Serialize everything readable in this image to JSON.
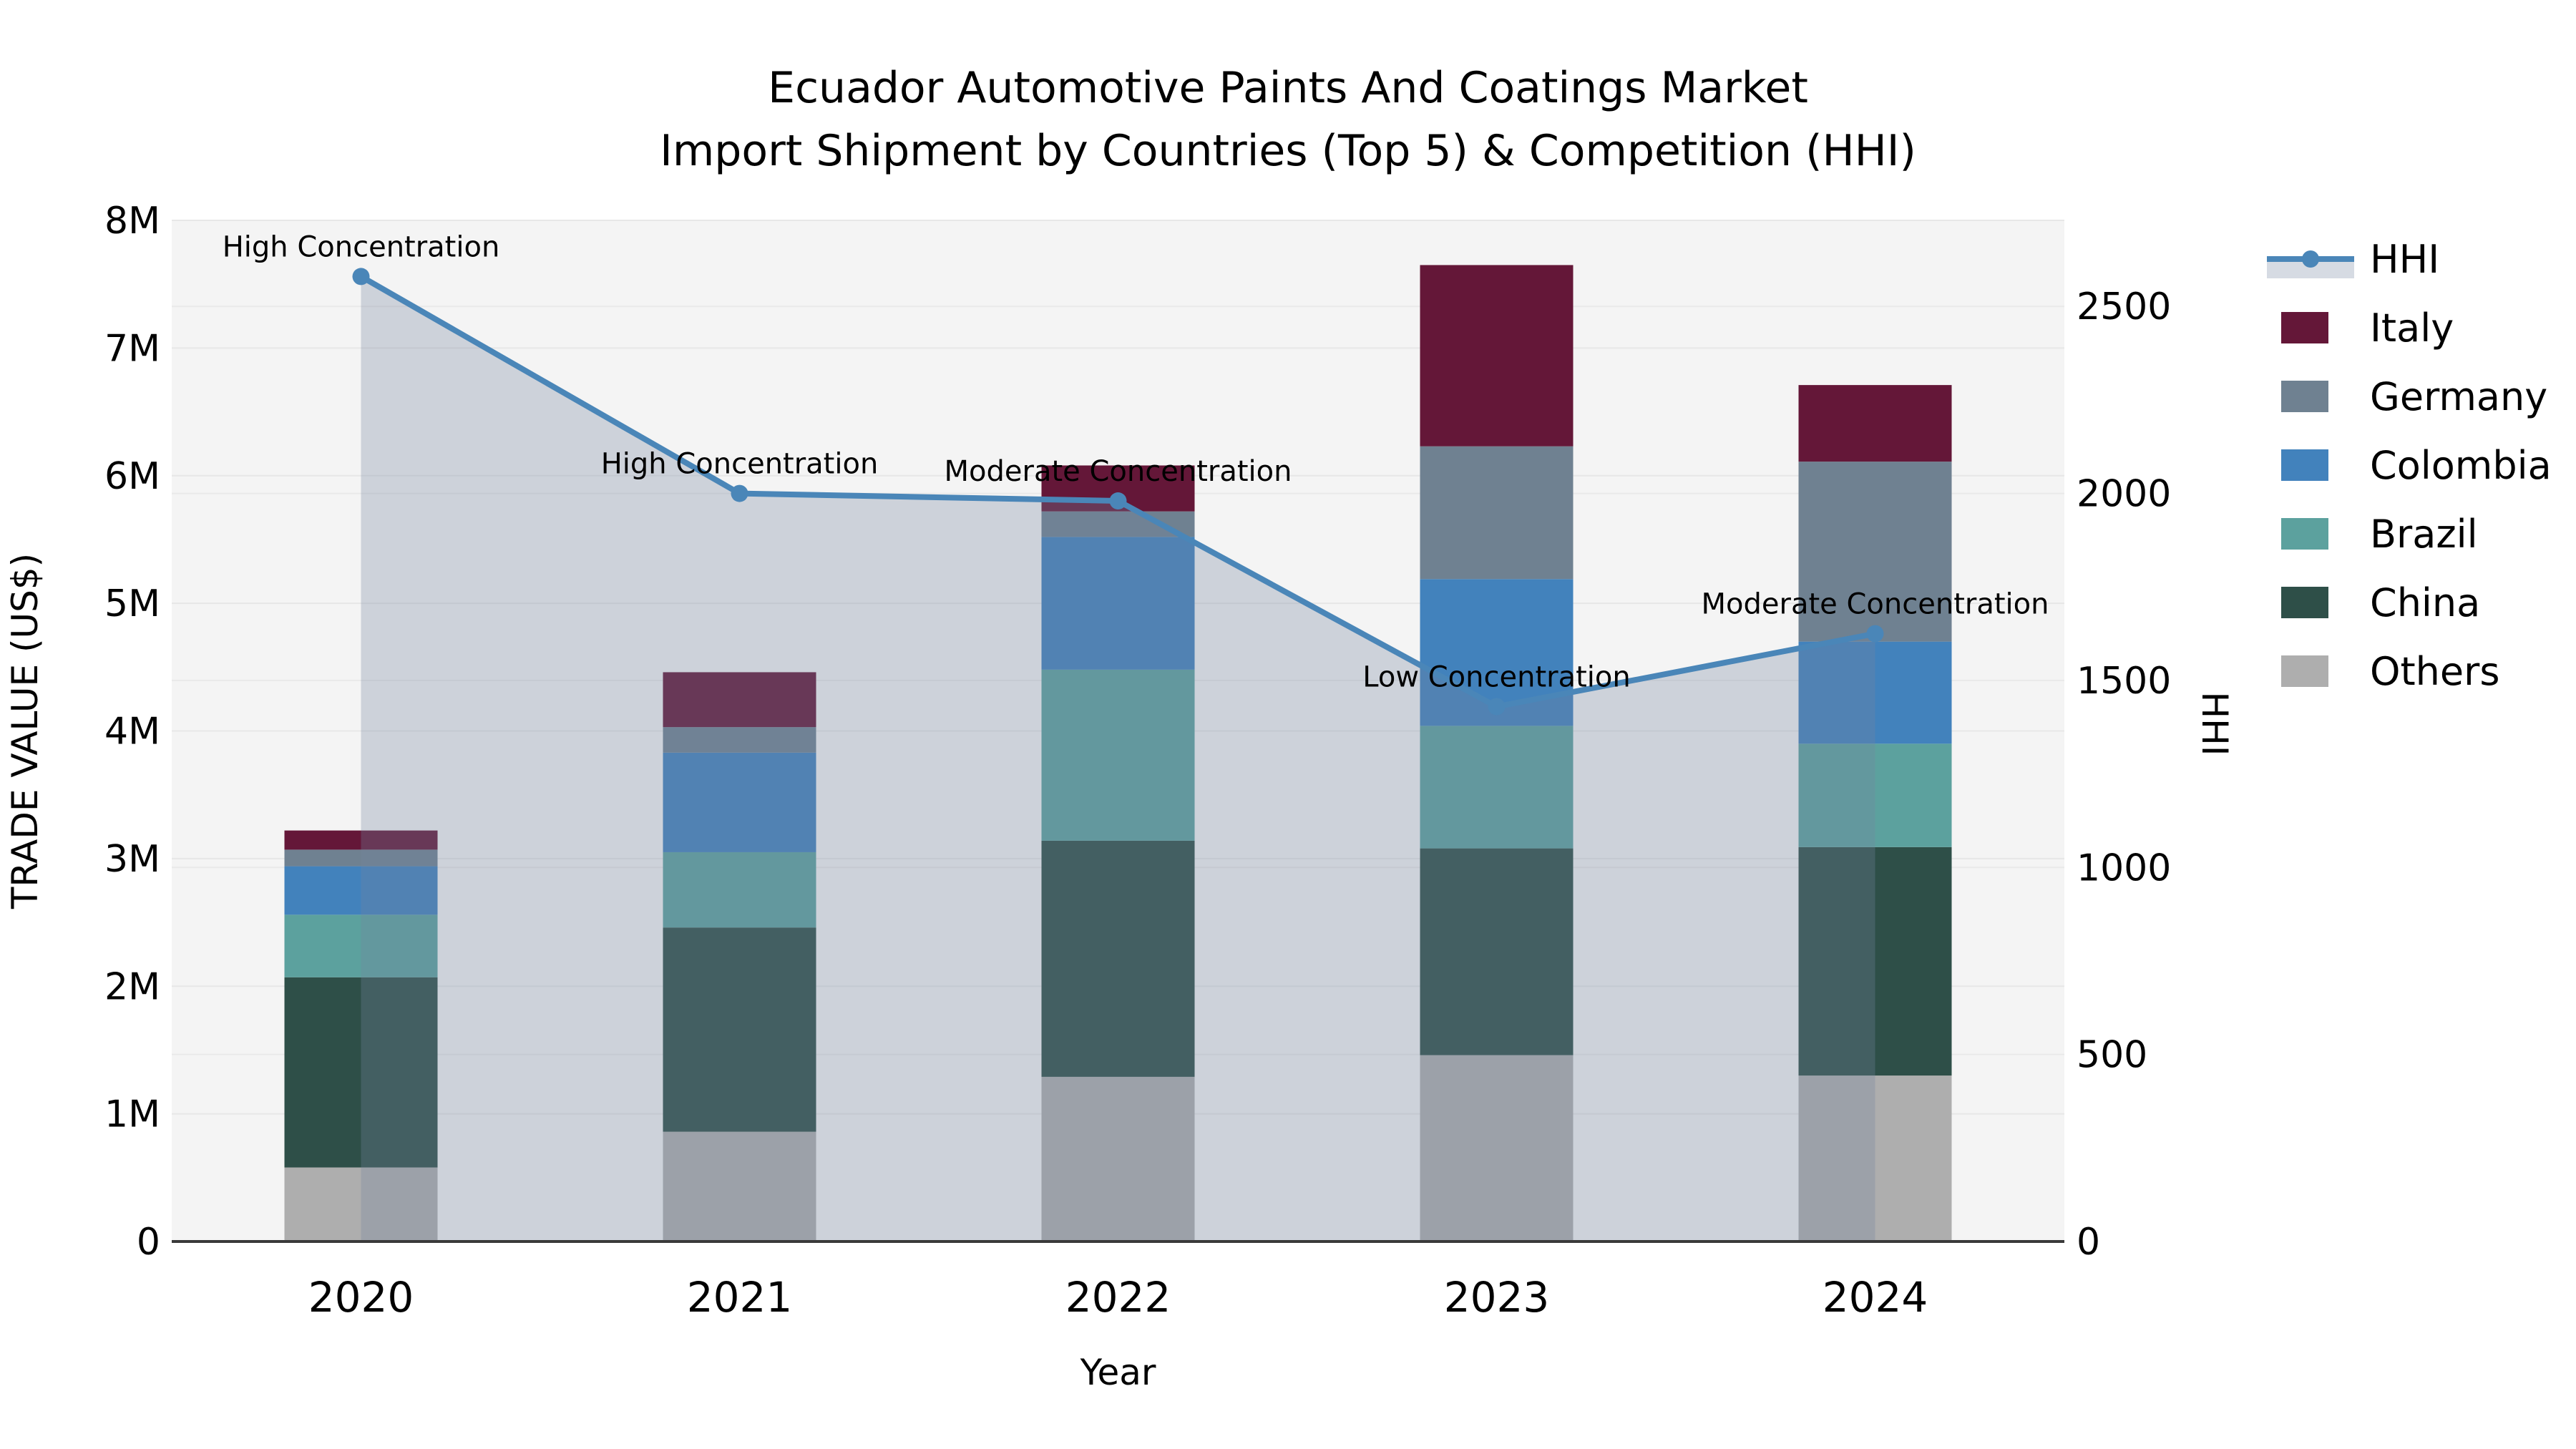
{
  "title": {
    "line1": "Ecuador Automotive Paints And Coatings Market",
    "line2": "Import Shipment by Countries (Top 5) & Competition (HHI)"
  },
  "chart_data": {
    "type": "bar+line",
    "title": "Ecuador Automotive Paints And Coatings Market Import Shipment by Countries (Top 5) & Competition (HHI)",
    "categories": [
      "2020",
      "2021",
      "2022",
      "2023",
      "2024"
    ],
    "bar_value_unit": "US$ millions",
    "series": [
      {
        "name": "Others",
        "color": "#aeaeae",
        "values": [
          0.58,
          0.86,
          1.29,
          1.46,
          1.3
        ]
      },
      {
        "name": "China",
        "color": "#2e4f48",
        "values": [
          1.49,
          1.6,
          1.85,
          1.62,
          1.79
        ]
      },
      {
        "name": "Brazil",
        "color": "#5ca19e",
        "values": [
          0.49,
          0.59,
          1.34,
          0.96,
          0.81
        ]
      },
      {
        "name": "Colombia",
        "color": "#4282bc",
        "values": [
          0.38,
          0.78,
          1.04,
          1.15,
          0.8
        ]
      },
      {
        "name": "Germany",
        "color": "#6f8191",
        "values": [
          0.13,
          0.2,
          0.2,
          1.04,
          1.41
        ]
      },
      {
        "name": "Italy",
        "color": "#641738",
        "values": [
          0.15,
          0.43,
          0.36,
          1.42,
          0.6
        ]
      }
    ],
    "line_series": {
      "name": "HHI",
      "color": "#4a86b8",
      "area_fill": "rgba(116,133,160,0.30)",
      "legend_band_color": "#d6dbe3",
      "values": [
        2580,
        2000,
        1980,
        1430,
        1625
      ]
    },
    "annotations": [
      {
        "year": "2020",
        "text": "High Concentration"
      },
      {
        "year": "2021",
        "text": "High Concentration"
      },
      {
        "year": "2022",
        "text": "Moderate Concentration"
      },
      {
        "year": "2023",
        "text": "Low Concentration"
      },
      {
        "year": "2024",
        "text": "Moderate Concentration"
      }
    ],
    "axes": {
      "x_label": "Year",
      "y_left_label": "TRADE VALUE (US$)",
      "y_left_ticks": [
        "0",
        "1M",
        "2M",
        "3M",
        "4M",
        "5M",
        "6M",
        "7M",
        "8M"
      ],
      "y_left_max_musd": 8,
      "y_right_label": "HHI",
      "y_right_ticks": [
        "0",
        "500",
        "1000",
        "1500",
        "2000",
        "2500"
      ],
      "y_right_tick_step": 500,
      "y_right_max": 2730,
      "grid": true
    },
    "legend": {
      "position": "right",
      "entries": [
        "HHI",
        "Italy",
        "Germany",
        "Colombia",
        "Brazil",
        "China",
        "Others"
      ]
    }
  }
}
